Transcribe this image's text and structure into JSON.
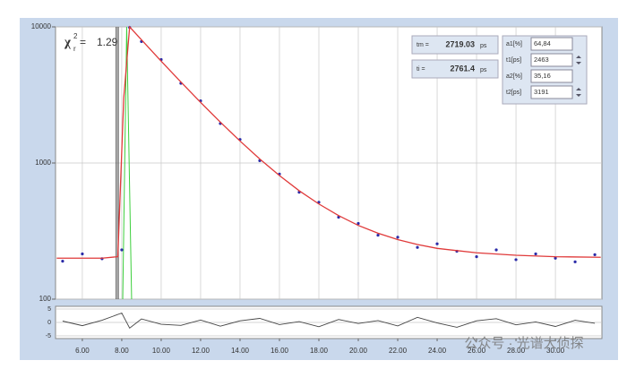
{
  "chart_data": {
    "type": "decay",
    "xlim": [
      4.64,
      32.36
    ],
    "xticks": [
      {
        "value": 6,
        "label": "6.00"
      },
      {
        "value": 8,
        "label": "8.00"
      },
      {
        "value": 10,
        "label": "10.00"
      },
      {
        "value": 12,
        "label": "12.00"
      },
      {
        "value": 14,
        "label": "14.00"
      },
      {
        "value": 16,
        "label": "16.00"
      },
      {
        "value": 18,
        "label": "18.00"
      },
      {
        "value": 20,
        "label": "20.00"
      },
      {
        "value": 22,
        "label": "22.00"
      },
      {
        "value": 24,
        "label": "24.00"
      },
      {
        "value": 26,
        "label": "26.00"
      },
      {
        "value": 28,
        "label": "28.00"
      },
      {
        "value": 30,
        "label": "30.00"
      }
    ],
    "ylim": [
      100,
      10000
    ],
    "yticks": [
      100,
      1000,
      10000
    ],
    "log_y": true,
    "grid": true,
    "y2lim": [
      -6,
      6
    ],
    "y2ticks": [
      5,
      0,
      -5
    ],
    "cursors": [
      7.72,
      7.82
    ],
    "data": {
      "color": "#2b2ba8",
      "x": [
        5,
        6,
        7,
        8,
        8.4,
        9,
        10,
        11,
        12,
        13,
        14,
        15,
        16,
        17,
        18,
        19,
        20,
        21,
        22,
        23,
        24,
        25,
        26,
        27,
        28,
        29,
        30,
        31,
        32
      ],
      "values": [
        190,
        215,
        198,
        230,
        9900,
        7800,
        5750,
        3850,
        2860,
        1950,
        1490,
        1040,
        830,
        610,
        515,
        400,
        360,
        295,
        285,
        240,
        255,
        225,
        205,
        230,
        195,
        215,
        200,
        188,
        212
      ]
    },
    "fit": {
      "color": "#e03a3a",
      "x": [
        4.7,
        6,
        7,
        7.8,
        8.1,
        8.4,
        9,
        10,
        11,
        12,
        13,
        14,
        15,
        16,
        17,
        18,
        19,
        20,
        21,
        22,
        23,
        24,
        26,
        28,
        30,
        32.3
      ],
      "values": [
        200,
        200,
        200,
        205,
        3000,
        10000,
        8030,
        5600,
        3934,
        2788,
        1997,
        1451,
        1071,
        809,
        626,
        500,
        411,
        348,
        305,
        274,
        252,
        236,
        219,
        210,
        205,
        203
      ]
    },
    "irf": {
      "color": "#3ccf3c",
      "x": [
        8.05,
        8.25,
        8.5
      ],
      "values": [
        100,
        10000,
        100
      ]
    },
    "residuals": {
      "color": "#444444",
      "x": [
        5,
        6,
        7,
        8,
        8.4,
        9,
        10,
        11,
        12,
        13,
        14,
        15,
        16,
        17,
        18,
        19,
        20,
        21,
        22,
        23,
        24,
        25,
        26,
        27,
        28,
        29,
        30,
        31,
        32
      ],
      "values": [
        0.5,
        -1.2,
        0.8,
        3.5,
        -2.1,
        1.3,
        -0.7,
        -1.1,
        0.9,
        -1.4,
        0.6,
        1.5,
        -0.8,
        0.3,
        -1.6,
        1.1,
        -0.4,
        0.7,
        -1.3,
        1.9,
        -0.2,
        -1.8,
        0.6,
        1.4,
        -0.9,
        0.2,
        -1.5,
        0.8,
        -0.3
      ]
    },
    "chi2": {
      "symbol": "χ",
      "sub": "r",
      "sup": "2",
      "sep": "=",
      "value": 1.29
    }
  },
  "fit_panel": {
    "tm": {
      "label": "tm =",
      "value": "2719.03",
      "unit": "ps"
    },
    "ti": {
      "label": "ti =",
      "value": "2761.4",
      "unit": "ps"
    },
    "params": [
      {
        "label": "a1[%]",
        "value": "64,84"
      },
      {
        "label": "t1[ps]",
        "value": "2463"
      },
      {
        "label": "a2[%]",
        "value": "35,16"
      },
      {
        "label": "t2[ps]",
        "value": "3191"
      }
    ]
  },
  "watermark": "公众号 · 光谱大侦探"
}
